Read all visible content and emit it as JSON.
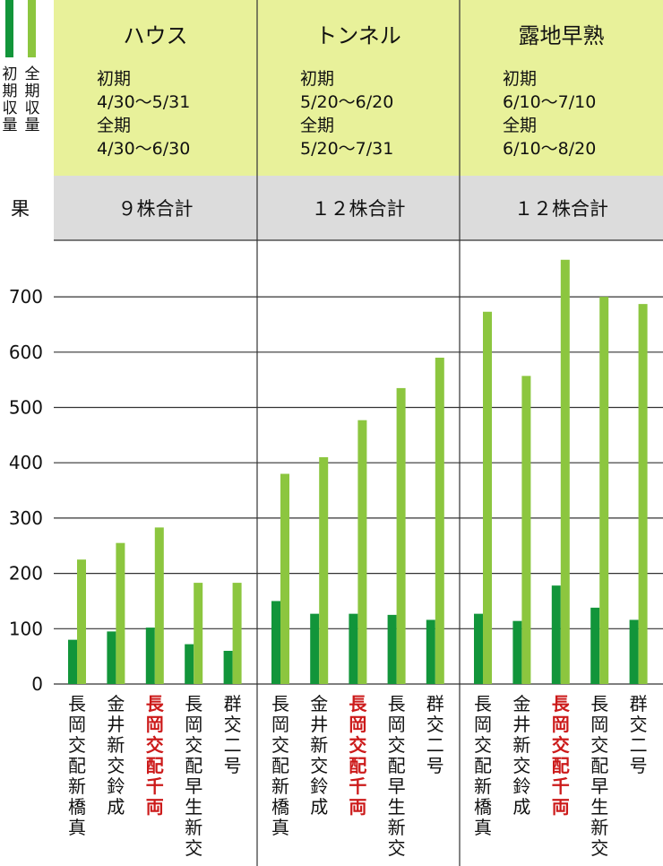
{
  "chart_data": {
    "type": "bar",
    "y_unit": "果",
    "ylim": [
      0,
      700
    ],
    "yticks": [
      0,
      100,
      200,
      300,
      400,
      500,
      600,
      700
    ],
    "legend": [
      {
        "label": "初期収量",
        "color": "#12953a"
      },
      {
        "label": "全期収量",
        "color": "#8cc63f"
      }
    ],
    "groups": [
      {
        "title": "ハウス",
        "period_lines": [
          "初期",
          "4/30～5/31",
          "全期",
          "4/30～6/30"
        ],
        "summary": "９株合計",
        "categories": [
          "長岡交配新橋真",
          "金井新交鈴成",
          "長岡交配千両",
          "長岡交配早生新交",
          "群交二号"
        ],
        "highlight": [
          false,
          false,
          true,
          false,
          false
        ],
        "initial": [
          80,
          95,
          102,
          72,
          60
        ],
        "full": [
          225,
          255,
          283,
          183,
          183
        ]
      },
      {
        "title": "トンネル",
        "period_lines": [
          "初期",
          "5/20～6/20",
          "全期",
          "5/20～7/31"
        ],
        "summary": "１２株合計",
        "categories": [
          "長岡交配新橋真",
          "金井新交鈴成",
          "長岡交配千両",
          "長岡交配早生新交",
          "群交二号"
        ],
        "highlight": [
          false,
          false,
          true,
          false,
          false
        ],
        "initial": [
          150,
          127,
          127,
          125,
          116
        ],
        "full": [
          380,
          410,
          477,
          535,
          590
        ]
      },
      {
        "title": "露地早熟",
        "period_lines": [
          "初期",
          "6/10～7/10",
          "全期",
          "6/10～8/20"
        ],
        "summary": "１２株合計",
        "categories": [
          "長岡交配新橋真",
          "金井新交鈴成",
          "長岡交配千両",
          "長岡交配早生新交",
          "群交二号"
        ],
        "highlight": [
          false,
          false,
          true,
          false,
          false
        ],
        "initial": [
          127,
          114,
          178,
          138,
          116
        ],
        "full": [
          673,
          557,
          767,
          700,
          687
        ]
      }
    ]
  }
}
